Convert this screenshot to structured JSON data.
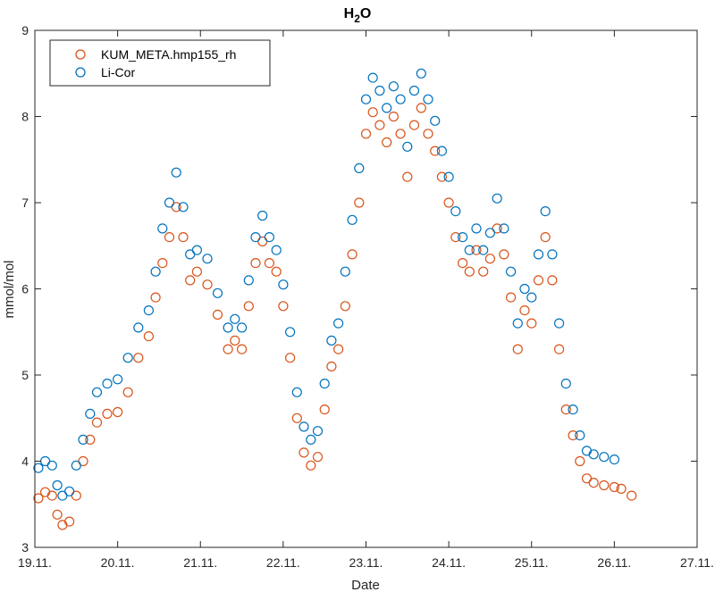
{
  "chart_data": {
    "type": "scatter",
    "title": "H",
    "title_subscript": "2",
    "title_suffix": "O",
    "xlabel": "Date",
    "ylabel": "mmol/mol",
    "x_is_date": true,
    "x_tick_labels": [
      "19.11.",
      "20.11.",
      "21.11.",
      "22.11.",
      "23.11.",
      "24.11.",
      "25.11.",
      "26.11.",
      "27.11."
    ],
    "xlim": [
      "2023-11-19T00:00",
      "2023-11-27T00:00"
    ],
    "ylim": [
      3,
      9
    ],
    "y_ticks": [
      3,
      4,
      5,
      6,
      7,
      8,
      9
    ],
    "grid": false,
    "legend_position": "top-left",
    "marker": "open-circle",
    "series": [
      {
        "name": "KUM_META.hmp155_rh",
        "color": "#D95319",
        "points": [
          [
            "2023-11-19T01:00",
            3.57
          ],
          [
            "2023-11-19T03:00",
            3.64
          ],
          [
            "2023-11-19T05:00",
            3.6
          ],
          [
            "2023-11-19T06:30",
            3.38
          ],
          [
            "2023-11-19T08:00",
            3.26
          ],
          [
            "2023-11-19T10:00",
            3.3
          ],
          [
            "2023-11-19T12:00",
            3.6
          ],
          [
            "2023-11-19T14:00",
            4.0
          ],
          [
            "2023-11-19T16:00",
            4.25
          ],
          [
            "2023-11-19T18:00",
            4.45
          ],
          [
            "2023-11-19T21:00",
            4.55
          ],
          [
            "2023-11-20T00:00",
            4.57
          ],
          [
            "2023-11-20T03:00",
            4.8
          ],
          [
            "2023-11-20T06:00",
            5.2
          ],
          [
            "2023-11-20T09:00",
            5.45
          ],
          [
            "2023-11-20T11:00",
            5.9
          ],
          [
            "2023-11-20T13:00",
            6.3
          ],
          [
            "2023-11-20T15:00",
            6.6
          ],
          [
            "2023-11-20T17:00",
            6.95
          ],
          [
            "2023-11-20T19:00",
            6.6
          ],
          [
            "2023-11-20T21:00",
            6.1
          ],
          [
            "2023-11-20T23:00",
            6.2
          ],
          [
            "2023-11-21T02:00",
            6.05
          ],
          [
            "2023-11-21T05:00",
            5.7
          ],
          [
            "2023-11-21T08:00",
            5.3
          ],
          [
            "2023-11-21T10:00",
            5.4
          ],
          [
            "2023-11-21T12:00",
            5.3
          ],
          [
            "2023-11-21T14:00",
            5.8
          ],
          [
            "2023-11-21T16:00",
            6.3
          ],
          [
            "2023-11-21T18:00",
            6.55
          ],
          [
            "2023-11-21T20:00",
            6.3
          ],
          [
            "2023-11-21T22:00",
            6.2
          ],
          [
            "2023-11-22T00:00",
            5.8
          ],
          [
            "2023-11-22T02:00",
            5.2
          ],
          [
            "2023-11-22T04:00",
            4.5
          ],
          [
            "2023-11-22T06:00",
            4.1
          ],
          [
            "2023-11-22T08:00",
            3.95
          ],
          [
            "2023-11-22T10:00",
            4.05
          ],
          [
            "2023-11-22T12:00",
            4.6
          ],
          [
            "2023-11-22T14:00",
            5.1
          ],
          [
            "2023-11-22T16:00",
            5.3
          ],
          [
            "2023-11-22T18:00",
            5.8
          ],
          [
            "2023-11-22T20:00",
            6.4
          ],
          [
            "2023-11-22T22:00",
            7.0
          ],
          [
            "2023-11-23T00:00",
            7.8
          ],
          [
            "2023-11-23T02:00",
            8.05
          ],
          [
            "2023-11-23T04:00",
            7.9
          ],
          [
            "2023-11-23T06:00",
            7.7
          ],
          [
            "2023-11-23T08:00",
            8.0
          ],
          [
            "2023-11-23T10:00",
            7.8
          ],
          [
            "2023-11-23T12:00",
            7.3
          ],
          [
            "2023-11-23T14:00",
            7.9
          ],
          [
            "2023-11-23T16:00",
            8.1
          ],
          [
            "2023-11-23T18:00",
            7.8
          ],
          [
            "2023-11-23T20:00",
            7.6
          ],
          [
            "2023-11-23T22:00",
            7.3
          ],
          [
            "2023-11-24T00:00",
            7.0
          ],
          [
            "2023-11-24T02:00",
            6.6
          ],
          [
            "2023-11-24T04:00",
            6.3
          ],
          [
            "2023-11-24T06:00",
            6.2
          ],
          [
            "2023-11-24T08:00",
            6.45
          ],
          [
            "2023-11-24T10:00",
            6.2
          ],
          [
            "2023-11-24T12:00",
            6.35
          ],
          [
            "2023-11-24T14:00",
            6.7
          ],
          [
            "2023-11-24T16:00",
            6.4
          ],
          [
            "2023-11-24T18:00",
            5.9
          ],
          [
            "2023-11-24T20:00",
            5.3
          ],
          [
            "2023-11-24T22:00",
            5.75
          ],
          [
            "2023-11-25T00:00",
            5.6
          ],
          [
            "2023-11-25T02:00",
            6.1
          ],
          [
            "2023-11-25T04:00",
            6.6
          ],
          [
            "2023-11-25T06:00",
            6.1
          ],
          [
            "2023-11-25T08:00",
            5.3
          ],
          [
            "2023-11-25T10:00",
            4.6
          ],
          [
            "2023-11-25T12:00",
            4.3
          ],
          [
            "2023-11-25T14:00",
            4.0
          ],
          [
            "2023-11-25T16:00",
            3.8
          ],
          [
            "2023-11-25T18:00",
            3.75
          ],
          [
            "2023-11-25T21:00",
            3.72
          ],
          [
            "2023-11-26T00:00",
            3.7
          ],
          [
            "2023-11-26T02:00",
            3.68
          ],
          [
            "2023-11-26T05:00",
            3.6
          ]
        ]
      },
      {
        "name": "Li-Cor",
        "color": "#0072BD",
        "points": [
          [
            "2023-11-19T01:00",
            3.92
          ],
          [
            "2023-11-19T03:00",
            4.0
          ],
          [
            "2023-11-19T05:00",
            3.95
          ],
          [
            "2023-11-19T06:30",
            3.72
          ],
          [
            "2023-11-19T08:00",
            3.6
          ],
          [
            "2023-11-19T10:00",
            3.65
          ],
          [
            "2023-11-19T12:00",
            3.95
          ],
          [
            "2023-11-19T14:00",
            4.25
          ],
          [
            "2023-11-19T16:00",
            4.55
          ],
          [
            "2023-11-19T18:00",
            4.8
          ],
          [
            "2023-11-19T21:00",
            4.9
          ],
          [
            "2023-11-20T00:00",
            4.95
          ],
          [
            "2023-11-20T03:00",
            5.2
          ],
          [
            "2023-11-20T06:00",
            5.55
          ],
          [
            "2023-11-20T09:00",
            5.75
          ],
          [
            "2023-11-20T11:00",
            6.2
          ],
          [
            "2023-11-20T13:00",
            6.7
          ],
          [
            "2023-11-20T15:00",
            7.0
          ],
          [
            "2023-11-20T17:00",
            7.35
          ],
          [
            "2023-11-20T19:00",
            6.95
          ],
          [
            "2023-11-20T21:00",
            6.4
          ],
          [
            "2023-11-20T23:00",
            6.45
          ],
          [
            "2023-11-21T02:00",
            6.35
          ],
          [
            "2023-11-21T05:00",
            5.95
          ],
          [
            "2023-11-21T08:00",
            5.55
          ],
          [
            "2023-11-21T10:00",
            5.65
          ],
          [
            "2023-11-21T12:00",
            5.55
          ],
          [
            "2023-11-21T14:00",
            6.1
          ],
          [
            "2023-11-21T16:00",
            6.6
          ],
          [
            "2023-11-21T18:00",
            6.85
          ],
          [
            "2023-11-21T20:00",
            6.6
          ],
          [
            "2023-11-21T22:00",
            6.45
          ],
          [
            "2023-11-22T00:00",
            6.05
          ],
          [
            "2023-11-22T02:00",
            5.5
          ],
          [
            "2023-11-22T04:00",
            4.8
          ],
          [
            "2023-11-22T06:00",
            4.4
          ],
          [
            "2023-11-22T08:00",
            4.25
          ],
          [
            "2023-11-22T10:00",
            4.35
          ],
          [
            "2023-11-22T12:00",
            4.9
          ],
          [
            "2023-11-22T14:00",
            5.4
          ],
          [
            "2023-11-22T16:00",
            5.6
          ],
          [
            "2023-11-22T18:00",
            6.2
          ],
          [
            "2023-11-22T20:00",
            6.8
          ],
          [
            "2023-11-22T22:00",
            7.4
          ],
          [
            "2023-11-23T00:00",
            8.2
          ],
          [
            "2023-11-23T02:00",
            8.45
          ],
          [
            "2023-11-23T04:00",
            8.3
          ],
          [
            "2023-11-23T06:00",
            8.1
          ],
          [
            "2023-11-23T08:00",
            8.35
          ],
          [
            "2023-11-23T10:00",
            8.2
          ],
          [
            "2023-11-23T12:00",
            7.65
          ],
          [
            "2023-11-23T14:00",
            8.3
          ],
          [
            "2023-11-23T16:00",
            8.5
          ],
          [
            "2023-11-23T18:00",
            8.2
          ],
          [
            "2023-11-23T20:00",
            7.95
          ],
          [
            "2023-11-23T22:00",
            7.6
          ],
          [
            "2023-11-24T00:00",
            7.3
          ],
          [
            "2023-11-24T02:00",
            6.9
          ],
          [
            "2023-11-24T04:00",
            6.6
          ],
          [
            "2023-11-24T06:00",
            6.45
          ],
          [
            "2023-11-24T08:00",
            6.7
          ],
          [
            "2023-11-24T10:00",
            6.45
          ],
          [
            "2023-11-24T12:00",
            6.65
          ],
          [
            "2023-11-24T14:00",
            7.05
          ],
          [
            "2023-11-24T16:00",
            6.7
          ],
          [
            "2023-11-24T18:00",
            6.2
          ],
          [
            "2023-11-24T20:00",
            5.6
          ],
          [
            "2023-11-24T22:00",
            6.0
          ],
          [
            "2023-11-25T00:00",
            5.9
          ],
          [
            "2023-11-25T02:00",
            6.4
          ],
          [
            "2023-11-25T04:00",
            6.9
          ],
          [
            "2023-11-25T06:00",
            6.4
          ],
          [
            "2023-11-25T08:00",
            5.6
          ],
          [
            "2023-11-25T10:00",
            4.9
          ],
          [
            "2023-11-25T12:00",
            4.6
          ],
          [
            "2023-11-25T14:00",
            4.3
          ],
          [
            "2023-11-25T16:00",
            4.12
          ],
          [
            "2023-11-25T18:00",
            4.08
          ],
          [
            "2023-11-25T21:00",
            4.05
          ],
          [
            "2023-11-26T00:00",
            4.02
          ]
        ]
      }
    ]
  }
}
